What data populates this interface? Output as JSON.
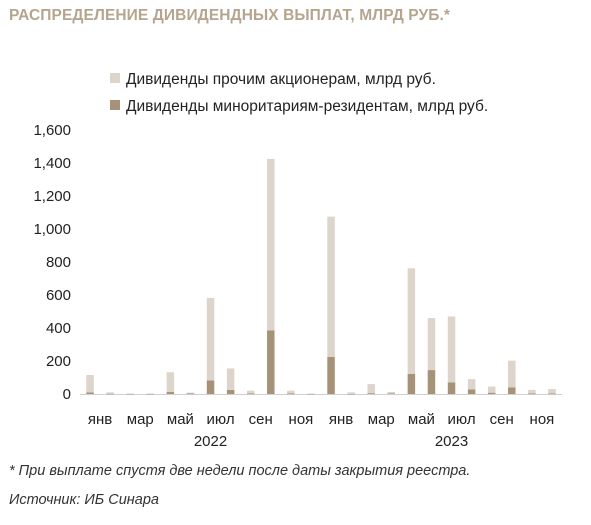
{
  "title": "РАСПРЕДЕЛЕНИЕ ДИВИДЕНДНЫХ ВЫПЛАТ, МЛРД РУБ.*",
  "footnote": "* При выплате спустя две недели после даты закрытия реестра.",
  "source": "Источник: ИБ Синара",
  "chart_data": {
    "type": "bar",
    "stacked": true,
    "ylim": [
      0,
      1600
    ],
    "yticks": [
      "0",
      "200",
      "400",
      "600",
      "800",
      "1,000",
      "1,200",
      "1,400",
      "1,600"
    ],
    "ytick_values": [
      0,
      200,
      400,
      600,
      800,
      1000,
      1200,
      1400,
      1600
    ],
    "grid": false,
    "legend_position": "top",
    "category_labels": [
      "янв",
      "",
      "мар",
      "",
      "май",
      "",
      "июл",
      "",
      "сен",
      "",
      "ноя",
      "",
      "янв",
      "",
      "мар",
      "",
      "май",
      "",
      "июл",
      "",
      "сен",
      "",
      "ноя",
      ""
    ],
    "year_labels": [
      {
        "label": "2022",
        "start": 0,
        "end": 11
      },
      {
        "label": "2023",
        "start": 12,
        "end": 23
      }
    ],
    "series": [
      {
        "name": "Дивиденды миноритариям-резидентам, млрд руб.",
        "color": "#a69276",
        "values": [
          10,
          2,
          1,
          1,
          12,
          3,
          82,
          25,
          3,
          385,
          3,
          1,
          225,
          1,
          5,
          4,
          122,
          145,
          70,
          28,
          8,
          40,
          3,
          3
        ]
      },
      {
        "name": "Дивиденды прочим акционерам, млрд руб.",
        "color": "#ddd4cb",
        "values": [
          105,
          8,
          2,
          2,
          120,
          5,
          500,
          130,
          17,
          1040,
          17,
          2,
          850,
          9,
          55,
          8,
          640,
          315,
          400,
          62,
          37,
          162,
          22,
          27
        ]
      }
    ]
  }
}
